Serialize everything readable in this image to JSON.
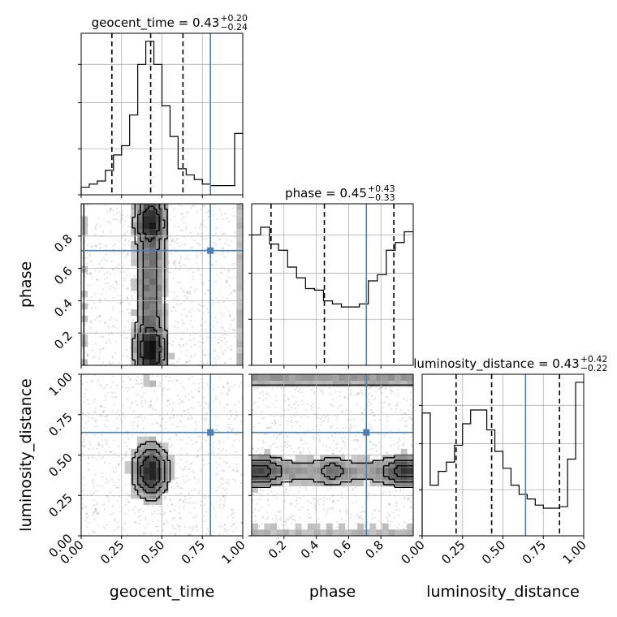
{
  "chart_data": {
    "type": "corner",
    "parameters": [
      "geocent_time",
      "phase",
      "luminosity_distance"
    ],
    "truth_color": "#4682b4",
    "truths": {
      "geocent_time": 0.8,
      "phase": 0.71,
      "luminosity_distance": 0.64
    },
    "titles": [
      {
        "param": "geocent_time",
        "text": "geocent_time = 0.43",
        "plus": "+0.20",
        "minus": "−0.24"
      },
      {
        "param": "phase",
        "text": "phase = 0.45",
        "plus": "+0.43",
        "minus": "−0.33"
      },
      {
        "param": "luminosity_distance",
        "text": "luminosity_distance = 0.43",
        "plus": "+0.42",
        "minus": "−0.22"
      }
    ],
    "ranges": {
      "geocent_time": [
        0.0,
        1.0
      ],
      "phase": [
        0.0,
        1.0
      ],
      "luminosity_distance": [
        0.0,
        1.0
      ]
    },
    "ticks": {
      "geocent_time": {
        "values": [
          0.0,
          0.25,
          0.5,
          0.75,
          1.0
        ],
        "labels": [
          "0.00",
          "0.25",
          "0.50",
          "0.75",
          "1.00"
        ]
      },
      "phase": {
        "values": [
          0.2,
          0.4,
          0.6,
          0.8
        ],
        "labels": [
          "0.2",
          "0.4",
          "0.6",
          "0.8"
        ]
      },
      "luminosity_distance": {
        "values": [
          0.0,
          0.25,
          0.5,
          0.75,
          1.0
        ],
        "labels": [
          "0.00",
          "0.25",
          "0.50",
          "0.75",
          "1.00"
        ]
      }
    },
    "quantiles": {
      "geocent_time": [
        0.19,
        0.43,
        0.63
      ],
      "phase": [
        0.12,
        0.45,
        0.88
      ],
      "luminosity_distance": [
        0.21,
        0.43,
        0.85
      ]
    },
    "histograms": {
      "geocent_time": [
        0.05,
        0.07,
        0.09,
        0.16,
        0.26,
        0.32,
        0.52,
        0.85,
        1.0,
        0.85,
        0.58,
        0.38,
        0.17,
        0.13,
        0.1,
        0.07,
        0.06,
        0.06,
        0.06,
        0.4
      ],
      "phase": [
        0.85,
        0.9,
        0.79,
        0.75,
        0.64,
        0.57,
        0.5,
        0.49,
        0.42,
        0.4,
        0.38,
        0.38,
        0.4,
        0.55,
        0.59,
        0.75,
        0.8,
        0.87
      ],
      "luminosity_distance": [
        0.8,
        0.33,
        0.42,
        0.48,
        0.59,
        0.73,
        0.82,
        0.82,
        0.69,
        0.55,
        0.44,
        0.33,
        0.27,
        0.24,
        0.2,
        0.18,
        0.18,
        0.19,
        0.5,
        1.0
      ]
    },
    "hist_yticks": [
      0.3,
      0.6,
      0.85
    ],
    "grid": true
  }
}
